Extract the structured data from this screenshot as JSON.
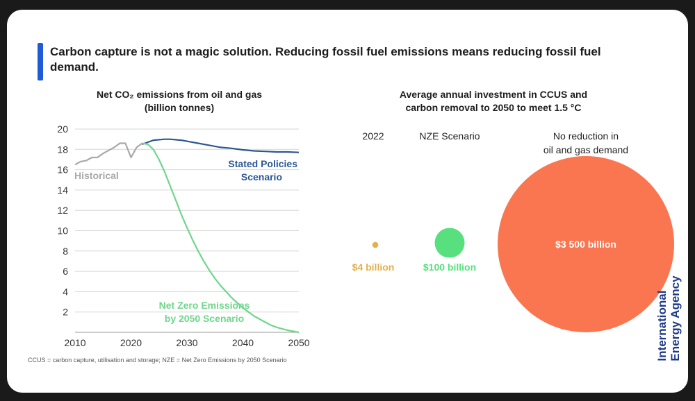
{
  "headline": "Carbon capture is not a magic solution. Reducing fossil fuel emissions means reducing fossil fuel demand.",
  "footnote": "CCUS = carbon capture, utilisation and storage; NZE = Net Zero Emissions by 2050 Scenario",
  "brand": {
    "line1": "International",
    "line2": "Energy Agency"
  },
  "colors": {
    "historical": "#a8a8a8",
    "stated": "#2b5792",
    "nze": "#6fd68b",
    "accent_bar": "#1f5bd6",
    "bubble_small": "#e3b04b",
    "bubble_mid": "#58e07e",
    "bubble_big": "#fa7650",
    "brand": "#1e3a8a"
  },
  "chart_data": [
    {
      "type": "line",
      "title": "Net CO₂ emissions from oil and gas",
      "subtitle": "(billion tonnes)",
      "xlim": [
        2010,
        2050
      ],
      "ylim": [
        0,
        20
      ],
      "x_ticks": [
        2010,
        2020,
        2030,
        2040,
        2050
      ],
      "y_ticks": [
        2,
        4,
        6,
        8,
        10,
        12,
        14,
        16,
        18,
        20
      ],
      "grid": true,
      "series": [
        {
          "name": "Historical",
          "color": "#a8a8a8",
          "x": [
            2010,
            2011,
            2012,
            2013,
            2014,
            2015,
            2016,
            2017,
            2018,
            2019,
            2020,
            2021,
            2022
          ],
          "y": [
            16.5,
            16.8,
            16.9,
            17.2,
            17.2,
            17.6,
            17.9,
            18.2,
            18.6,
            18.6,
            17.2,
            18.2,
            18.6
          ]
        },
        {
          "name": "Stated Policies Scenario",
          "color": "#2b5792",
          "x": [
            2022,
            2023,
            2024,
            2025,
            2026,
            2027,
            2028,
            2029,
            2030,
            2032,
            2034,
            2036,
            2038,
            2040,
            2042,
            2044,
            2046,
            2048,
            2050
          ],
          "y": [
            18.5,
            18.7,
            18.9,
            18.95,
            19.0,
            19.0,
            18.95,
            18.9,
            18.8,
            18.6,
            18.4,
            18.2,
            18.1,
            17.95,
            17.85,
            17.8,
            17.75,
            17.75,
            17.7
          ]
        },
        {
          "name": "Net Zero Emissions by 2050 Scenario",
          "color": "#6fd68b",
          "x": [
            2022,
            2023,
            2024,
            2025,
            2026,
            2027,
            2028,
            2029,
            2030,
            2031,
            2032,
            2033,
            2034,
            2035,
            2036,
            2037,
            2038,
            2039,
            2040,
            2041,
            2042,
            2043,
            2044,
            2045,
            2046,
            2047,
            2048,
            2049,
            2050
          ],
          "y": [
            18.6,
            18.5,
            18.0,
            17.0,
            15.8,
            14.4,
            13.0,
            11.6,
            10.3,
            9.1,
            8.0,
            7.0,
            6.1,
            5.3,
            4.6,
            4.0,
            3.4,
            2.9,
            2.4,
            2.0,
            1.6,
            1.3,
            1.0,
            0.7,
            0.5,
            0.35,
            0.2,
            0.1,
            0.0
          ]
        }
      ],
      "series_labels": {
        "historical": "Historical",
        "stated_line1": "Stated Policies",
        "stated_line2": "Scenario",
        "nze_line1": "Net Zero Emissions",
        "nze_line2": "by 2050 Scenario"
      }
    },
    {
      "type": "bubble",
      "title_line1": "Average annual investment in CCUS and",
      "title_line2": "carbon removal to 2050 to meet 1.5 °C",
      "categories": [
        "2022",
        "NZE Scenario",
        "No reduction in oil and gas demand"
      ],
      "category_lines": [
        [
          "2022"
        ],
        [
          "NZE Scenario"
        ],
        [
          "No reduction in",
          "oil and gas demand"
        ]
      ],
      "values_billion_usd": [
        4,
        100,
        3500
      ],
      "value_labels": [
        "$4 billion",
        "$100 billion",
        "$3 500 billion"
      ],
      "colors": [
        "#e3b04b",
        "#58e07e",
        "#fa7650"
      ]
    }
  ]
}
